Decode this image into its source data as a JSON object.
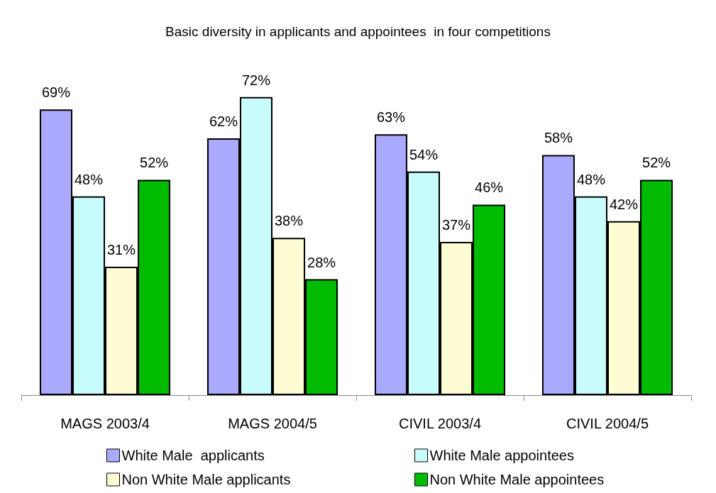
{
  "chart_data": {
    "type": "bar",
    "title": "Basic diversity in applicants and appointees  in four competitions",
    "categories": [
      "MAGS 2003/4",
      "MAGS 2004/5",
      "CIVIL 2003/4",
      "CIVIL 2004/5"
    ],
    "series": [
      {
        "name": "White Male  applicants",
        "color": "#a9a9fd",
        "values": [
          69,
          62,
          63,
          58
        ],
        "value_labels": [
          "69%",
          "62%",
          "63%",
          "58%"
        ]
      },
      {
        "name": "White Male appointees",
        "color": "#c8fcfc",
        "values": [
          48,
          72,
          54,
          48
        ],
        "value_labels": [
          "48%",
          "72%",
          "54%",
          "48%"
        ]
      },
      {
        "name": "Non White Male applicants",
        "color": "#fefcd2",
        "values": [
          31,
          38,
          37,
          42
        ],
        "value_labels": [
          "31%",
          "38%",
          "37%",
          "42%"
        ]
      },
      {
        "name": "Non White Male appointees",
        "color": "#00bb00",
        "values": [
          52,
          28,
          46,
          52
        ],
        "value_labels": [
          "52%",
          "28%",
          "46%",
          "52%"
        ]
      }
    ],
    "legend": "bottom",
    "grid": false
  }
}
